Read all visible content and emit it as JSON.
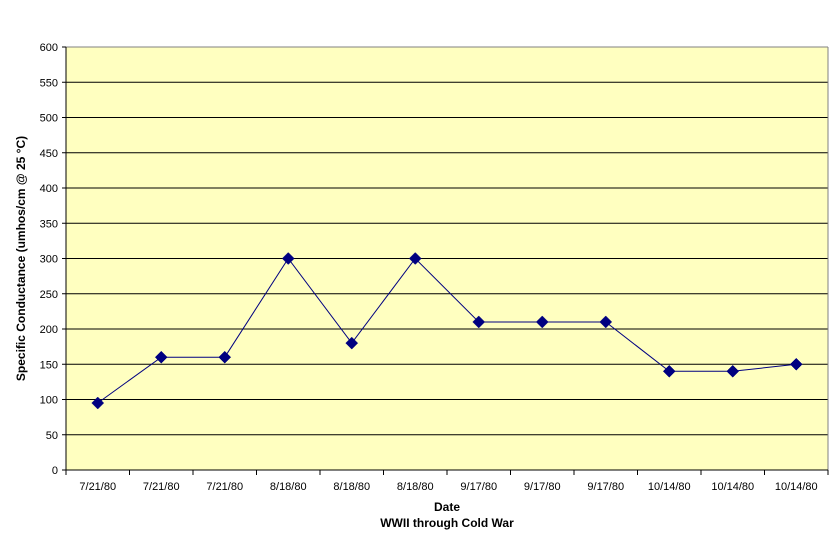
{
  "chart_data": {
    "type": "line",
    "title": "",
    "xlabel": "Date",
    "subtitle": "WWII through Cold War",
    "ylabel": "Specific Conductance (umhos/cm @ 25 °C)",
    "categories": [
      "7/21/80",
      "7/21/80",
      "7/21/80",
      "8/18/80",
      "8/18/80",
      "8/18/80",
      "9/17/80",
      "9/17/80",
      "9/17/80",
      "10/14/80",
      "10/14/80",
      "10/14/80"
    ],
    "series": [
      {
        "values": [
          95,
          160,
          160,
          300,
          180,
          300,
          210,
          210,
          210,
          140,
          140,
          150
        ]
      }
    ],
    "ylim": [
      0,
      600
    ],
    "yticks": [
      "0",
      "50",
      "100",
      "150",
      "200",
      "250",
      "300",
      "350",
      "400",
      "450",
      "500",
      "550",
      "600"
    ],
    "grid": true,
    "legend": "none",
    "colors": {
      "plot_background": "#FFFFC0",
      "line": "#000080",
      "marker": "#000080",
      "gridline": "#000000"
    }
  }
}
